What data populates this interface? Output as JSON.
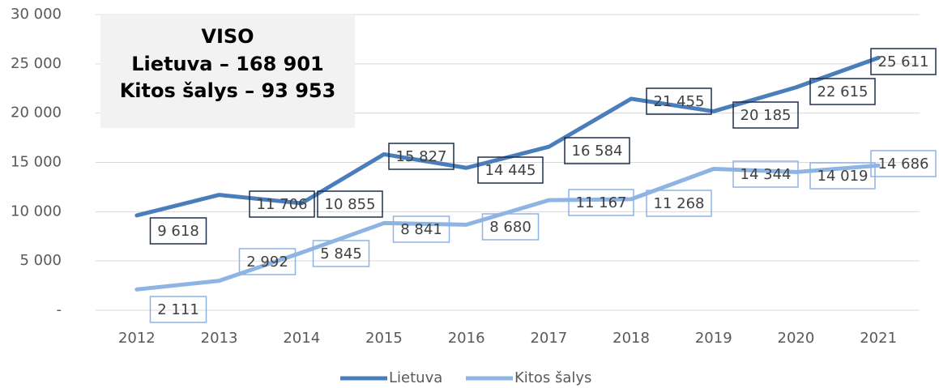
{
  "chart_data": {
    "type": "line",
    "categories": [
      "2012",
      "2013",
      "2014",
      "2015",
      "2016",
      "2017",
      "2018",
      "2019",
      "2020",
      "2021"
    ],
    "series": [
      {
        "name": "Lietuva",
        "color": "#4a7ebb",
        "values": [
          9618,
          11706,
          10855,
          15827,
          14445,
          16584,
          21455,
          20185,
          22615,
          25611
        ],
        "value_labels": [
          "9 618",
          "11 706",
          "10 855",
          "15 827",
          "14 445",
          "16 584",
          "21 455",
          "20 185",
          "22 615",
          "25 611"
        ]
      },
      {
        "name": "Kitos šalys",
        "color": "#8db4e2",
        "values": [
          2111,
          2992,
          5845,
          8841,
          8680,
          11167,
          11268,
          14344,
          14019,
          14686
        ],
        "value_labels": [
          "2 111",
          "2 992",
          "5 845",
          "8 841",
          "8 680",
          "11 167",
          "11 268",
          "14 344",
          "14 019",
          "14 686"
        ]
      }
    ],
    "ylim": [
      0,
      30000
    ],
    "yticks": [
      {
        "value": 0,
        "label": "-"
      },
      {
        "value": 5000,
        "label": "5 000"
      },
      {
        "value": 10000,
        "label": "10 000"
      },
      {
        "value": 15000,
        "label": "15 000"
      },
      {
        "value": 20000,
        "label": "20 000"
      },
      {
        "value": 25000,
        "label": "25 000"
      },
      {
        "value": 30000,
        "label": "30 000"
      }
    ],
    "grid": true,
    "legend": "bottom",
    "annotations": [
      "VISO",
      "Lietuva – 168 901",
      "Kitos šalys – 93 953"
    ]
  }
}
